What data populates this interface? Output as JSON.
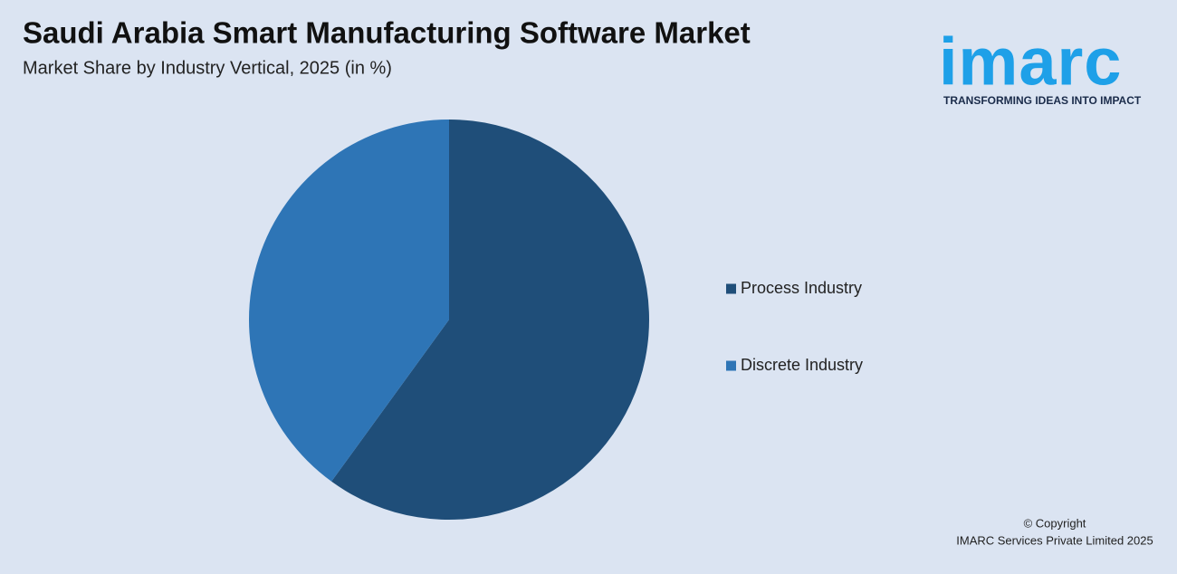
{
  "chart_data": {
    "type": "pie",
    "title": "Saudi Arabia Smart Manufacturing Software Market",
    "subtitle": "Market Share by Industry Vertical, 2025 (in %)",
    "categories": [
      "Process Industry",
      "Discrete Industry"
    ],
    "values": [
      60,
      40
    ],
    "colors": [
      "#1f4e79",
      "#2e75b6"
    ],
    "legend": "right"
  },
  "logo": {
    "name": "imarc",
    "tagline": "TRANSFORMING IDEAS INTO IMPACT"
  },
  "footer": {
    "copyright": "© Copyright",
    "company": "IMARC Services Private Limited 2025"
  }
}
